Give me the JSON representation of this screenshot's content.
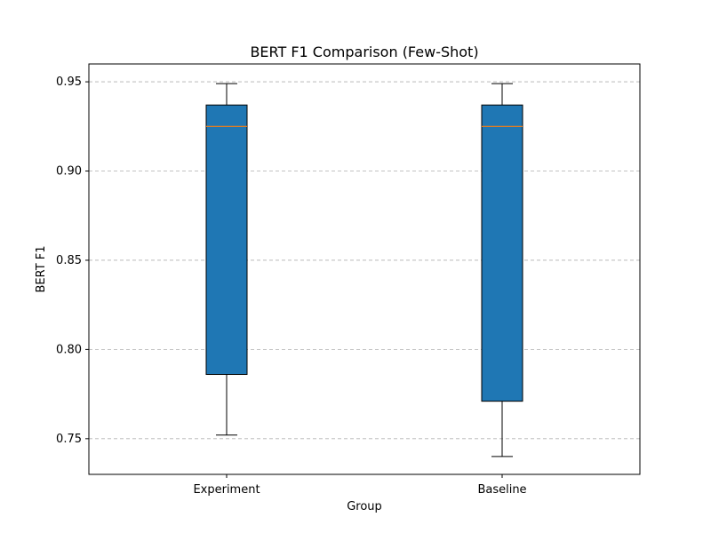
{
  "chart_data": {
    "type": "box",
    "title": "BERT F1 Comparison (Few-Shot)",
    "xlabel": "Group",
    "ylabel": "BERT F1",
    "ylim": [
      0.73,
      0.96
    ],
    "yticks": [
      0.75,
      0.8,
      0.85,
      0.9,
      0.95
    ],
    "ytick_labels": [
      "0.75",
      "0.80",
      "0.85",
      "0.90",
      "0.95"
    ],
    "grid": "y-dashed",
    "legend": "none",
    "box_color": "#1f77b4",
    "median_color": "#ff7f0e",
    "categories": [
      "Experiment",
      "Baseline"
    ],
    "series": [
      {
        "whisker_low": 0.752,
        "q1": 0.786,
        "median": 0.925,
        "q3": 0.937,
        "whisker_high": 0.949
      },
      {
        "whisker_low": 0.74,
        "q1": 0.771,
        "median": 0.925,
        "q3": 0.937,
        "whisker_high": 0.949
      }
    ]
  }
}
